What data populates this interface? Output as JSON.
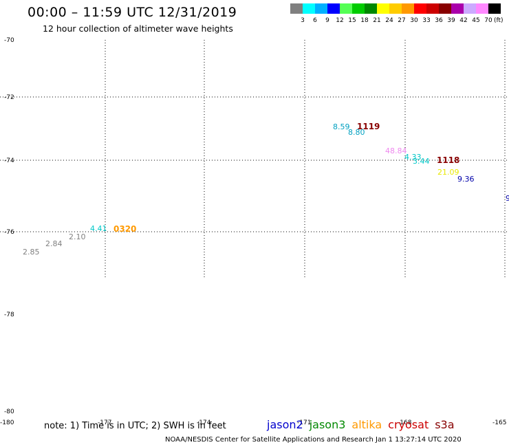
{
  "header": {
    "title": "00:00 – 11:59 UTC 12/31/2019",
    "subtitle": "12 hour collection of altimeter wave heights"
  },
  "color_scale": {
    "colors": [
      "#808080",
      "#00ffff",
      "#00b0ff",
      "#0000ff",
      "#55ff55",
      "#00cc00",
      "#008800",
      "#ffff00",
      "#ffcc00",
      "#ff9900",
      "#ff0000",
      "#cc0000",
      "#880000",
      "#aa00aa",
      "#ccaaff",
      "#ff88ff",
      "#000000"
    ],
    "labels": [
      "3",
      "6",
      "9",
      "12",
      "15",
      "18",
      "21",
      "24",
      "27",
      "30",
      "33",
      "36",
      "39",
      "42",
      "45",
      "70"
    ],
    "unit": "(ft)"
  },
  "axes": {
    "lat_labels": [
      "-70",
      "-72",
      "-74",
      "-76",
      "-78",
      "-80"
    ],
    "lon_labels": [
      "-180",
      "-177",
      "-174",
      "-171",
      "-168",
      "-165"
    ]
  },
  "observations": [
    {
      "text": "8.59",
      "color": "#00a0c0"
    },
    {
      "text": "8.80",
      "color": "#00a0c0"
    },
    {
      "text": "48.84",
      "color": "#ee88ee"
    },
    {
      "text": "4.33",
      "color": "#00c8c8"
    },
    {
      "text": "3.44",
      "color": "#00c8c8"
    },
    {
      "text": "21.09",
      "color": "#e8e800"
    },
    {
      "text": "9.36",
      "color": "#0000aa"
    },
    {
      "text": "9",
      "color": "#0000aa"
    },
    {
      "text": "4.41",
      "color": "#00c8c8"
    },
    {
      "text": "2.10",
      "color": "#808080"
    },
    {
      "text": "2.84",
      "color": "#808080"
    },
    {
      "text": "2.85",
      "color": "#808080"
    }
  ],
  "passes": [
    {
      "text": "1119",
      "color": "#880000"
    },
    {
      "text": "1118",
      "color": "#880000"
    },
    {
      "text": "0320",
      "color": "#ff9900"
    }
  ],
  "footer": {
    "note": "note:  1) Time is in UTC;  2) SWH is in feet",
    "credit": "NOAA/NESDIS Center for Satellite Applications and Research    Jan  1 13:27:14 UTC 2020"
  },
  "legend": [
    {
      "name": "jason2",
      "color": "#0000cc"
    },
    {
      "name": "jason3",
      "color": "#008800"
    },
    {
      "name": "altika",
      "color": "#ff9900"
    },
    {
      "name": "cryosat",
      "color": "#cc0000"
    },
    {
      "name": "s3a",
      "color": "#880000"
    }
  ]
}
